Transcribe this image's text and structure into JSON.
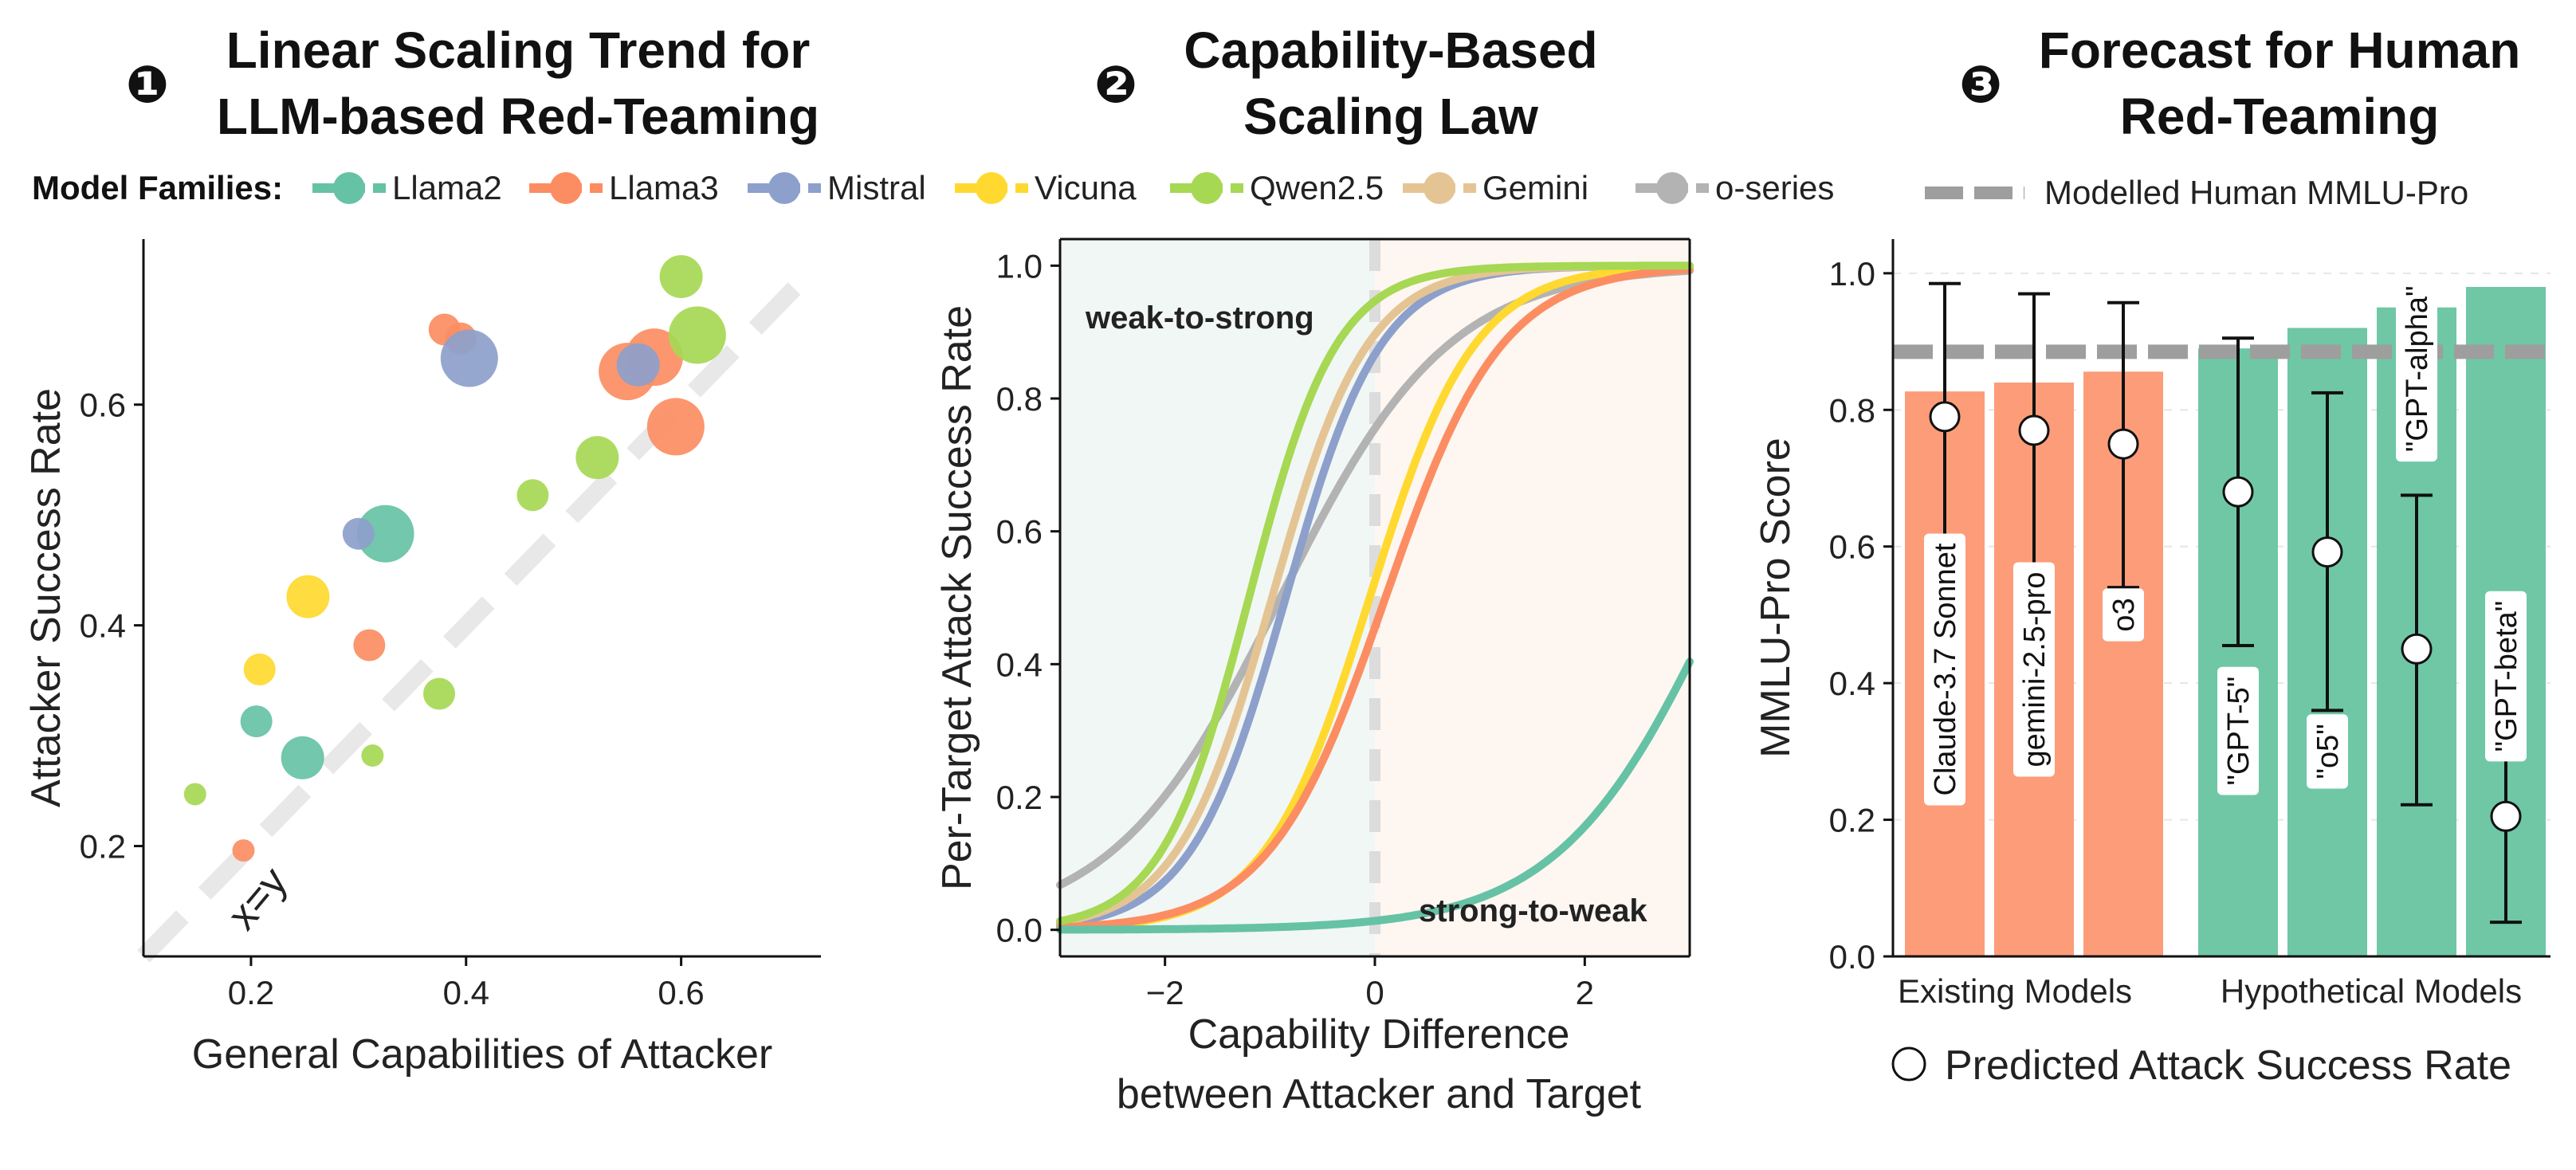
{
  "legend": {
    "families_label": "Model Families:",
    "families": [
      {
        "name": "Llama2",
        "color": "#66c2a5"
      },
      {
        "name": "Llama3",
        "color": "#fc8d62"
      },
      {
        "name": "Mistral",
        "color": "#8da0cb"
      },
      {
        "name": "Vicuna",
        "color": "#ffd92f"
      },
      {
        "name": "Qwen2.5",
        "color": "#a6d854"
      },
      {
        "name": "Gemini",
        "color": "#e5c494"
      },
      {
        "name": "o-series",
        "color": "#b3b3b3"
      }
    ],
    "human_label": "Modelled Human MMLU-Pro",
    "predicted_label": "Predicted Attack Success Rate"
  },
  "panels": {
    "p1": {
      "number": "❶",
      "title_line1": "Linear Scaling Trend for",
      "title_line2": "LLM-based Red-Teaming"
    },
    "p2": {
      "number": "❷",
      "title_line1": "Capability-Based",
      "title_line2": "Scaling Law"
    },
    "p3": {
      "number": "❸",
      "title_line1": "Forecast for Human",
      "title_line2": "Red-Teaming"
    }
  },
  "chart_data": [
    {
      "type": "scatter",
      "title": "Linear Scaling Trend for LLM-based Red-Teaming",
      "xlabel": "General Capabilities of Attacker",
      "ylabel": "Attacker Success Rate",
      "xlim": [
        0.1,
        0.73
      ],
      "ylim": [
        0.1,
        0.75
      ],
      "xticks": [
        0.2,
        0.4,
        0.6
      ],
      "yticks": [
        0.2,
        0.4,
        0.6
      ],
      "diagonal_label": "x=y",
      "points": [
        {
          "family": "Llama2",
          "x": 0.205,
          "y": 0.313,
          "size": "small"
        },
        {
          "family": "Llama2",
          "x": 0.248,
          "y": 0.28,
          "size": "medium"
        },
        {
          "family": "Llama2",
          "x": 0.325,
          "y": 0.483,
          "size": "large"
        },
        {
          "family": "Llama3",
          "x": 0.193,
          "y": 0.196,
          "size": "tiny"
        },
        {
          "family": "Llama3",
          "x": 0.31,
          "y": 0.382,
          "size": "small"
        },
        {
          "family": "Llama3",
          "x": 0.38,
          "y": 0.668,
          "size": "small"
        },
        {
          "family": "Llama3",
          "x": 0.395,
          "y": 0.66,
          "size": "small"
        },
        {
          "family": "Llama3",
          "x": 0.55,
          "y": 0.63,
          "size": "large"
        },
        {
          "family": "Llama3",
          "x": 0.575,
          "y": 0.643,
          "size": "large"
        },
        {
          "family": "Llama3",
          "x": 0.595,
          "y": 0.58,
          "size": "large"
        },
        {
          "family": "Mistral",
          "x": 0.3,
          "y": 0.483,
          "size": "small"
        },
        {
          "family": "Mistral",
          "x": 0.403,
          "y": 0.642,
          "size": "large"
        },
        {
          "family": "Mistral",
          "x": 0.56,
          "y": 0.636,
          "size": "medium"
        },
        {
          "family": "Vicuna",
          "x": 0.208,
          "y": 0.36,
          "size": "small"
        },
        {
          "family": "Vicuna",
          "x": 0.253,
          "y": 0.426,
          "size": "medium"
        },
        {
          "family": "Qwen2.5",
          "x": 0.148,
          "y": 0.247,
          "size": "tiny"
        },
        {
          "family": "Qwen2.5",
          "x": 0.313,
          "y": 0.282,
          "size": "tiny"
        },
        {
          "family": "Qwen2.5",
          "x": 0.375,
          "y": 0.338,
          "size": "small"
        },
        {
          "family": "Qwen2.5",
          "x": 0.462,
          "y": 0.518,
          "size": "small"
        },
        {
          "family": "Qwen2.5",
          "x": 0.522,
          "y": 0.552,
          "size": "medium"
        },
        {
          "family": "Qwen2.5",
          "x": 0.6,
          "y": 0.716,
          "size": "medium"
        },
        {
          "family": "Qwen2.5",
          "x": 0.615,
          "y": 0.663,
          "size": "large"
        }
      ]
    },
    {
      "type": "line",
      "title": "Capability-Based Scaling Law",
      "xlabel_line1": "Capability Difference",
      "xlabel_line2": "between Attacker and Target",
      "ylabel": "Per-Target Attack  Success Rate",
      "xlim": [
        -3,
        3
      ],
      "ylim": [
        -0.04,
        1.04
      ],
      "xticks": [
        -2,
        0,
        2
      ],
      "xtick_labels": [
        "−2",
        "0",
        "2"
      ],
      "yticks": [
        0.0,
        0.2,
        0.4,
        0.6,
        0.8,
        1.0
      ],
      "region_labels": {
        "left": "weak-to-strong",
        "right": "strong-to-weak"
      },
      "series": [
        {
          "name": "o-series",
          "midpoint": -0.9,
          "slope": 1.25
        },
        {
          "name": "Mistral",
          "midpoint": -0.85,
          "slope": 2.2
        },
        {
          "name": "Gemini",
          "midpoint": -0.98,
          "slope": 2.2
        },
        {
          "name": "Vicuna",
          "midpoint": -0.05,
          "slope": 2.0
        },
        {
          "name": "Llama3",
          "midpoint": 0.1,
          "slope": 1.8
        },
        {
          "name": "Qwen2.5",
          "midpoint": -1.2,
          "slope": 2.4
        },
        {
          "name": "Llama2",
          "midpoint": 3.3,
          "slope": 1.3
        }
      ]
    },
    {
      "type": "bar",
      "title": "Forecast for Human Red-Teaming",
      "ylabel": "MMLU-Pro Score",
      "ylim": [
        0,
        1.05
      ],
      "yticks": [
        0.0,
        0.2,
        0.4,
        0.6,
        0.8,
        1.0
      ],
      "group_labels": [
        "Existing Models",
        "Hypothetical  Models"
      ],
      "human_mmlu_pro": 0.885,
      "bars": [
        {
          "label": "Claude-3.7 Sonnet",
          "group": "existing",
          "mmlu_pro": 0.827,
          "predicted": 0.79,
          "lo": 0.6,
          "hi": 0.985
        },
        {
          "label": "gemini-2.5-pro",
          "group": "existing",
          "mmlu_pro": 0.84,
          "predicted": 0.77,
          "lo": 0.56,
          "hi": 0.97
        },
        {
          "label": "o3",
          "group": "existing",
          "mmlu_pro": 0.856,
          "predicted": 0.75,
          "lo": 0.54,
          "hi": 0.957
        },
        {
          "label": "\"GPT-5\"",
          "group": "hypothetical",
          "mmlu_pro": 0.89,
          "predicted": 0.68,
          "lo": 0.455,
          "hi": 0.905
        },
        {
          "label": "\"o5\"",
          "group": "hypothetical",
          "mmlu_pro": 0.92,
          "predicted": 0.592,
          "lo": 0.36,
          "hi": 0.825
        },
        {
          "label": "\"GPT-alpha\"",
          "group": "hypothetical",
          "mmlu_pro": 0.95,
          "predicted": 0.45,
          "lo": 0.222,
          "hi": 0.675
        },
        {
          "label": "\"GPT-beta\"",
          "group": "hypothetical",
          "mmlu_pro": 0.98,
          "predicted": 0.205,
          "lo": 0.05,
          "hi": 0.355
        }
      ],
      "colors": {
        "existing": "#fc9c79",
        "hypothetical": "#6fc7a6",
        "human_line": "#9e9e9e"
      }
    }
  ]
}
